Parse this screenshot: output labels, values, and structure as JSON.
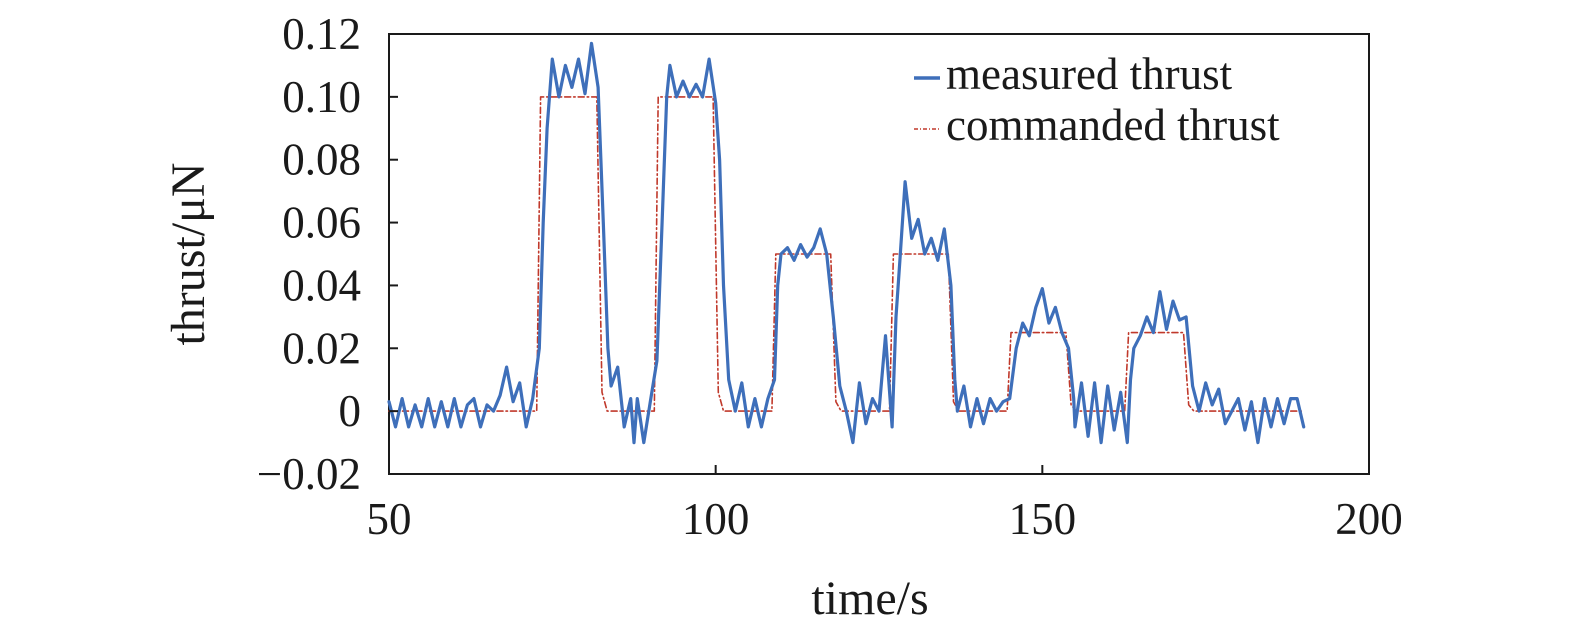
{
  "chart_data": {
    "type": "line",
    "title": "",
    "xlabel": "time/s",
    "ylabel": "thrust/μN",
    "xlim": [
      50,
      200
    ],
    "ylim": [
      -0.02,
      0.12
    ],
    "x_ticks": [
      50,
      100,
      150,
      200
    ],
    "x_tick_labels": [
      "50",
      "100",
      "150",
      "200"
    ],
    "y_ticks": [
      -0.02,
      0,
      0.02,
      0.04,
      0.06,
      0.08,
      0.1,
      0.12
    ],
    "y_tick_labels": [
      "−0.02",
      "0",
      "0.02",
      "0.04",
      "0.06",
      "0.08",
      "0.10",
      "0.12"
    ],
    "grid": false,
    "legend_position": "top-right",
    "series": [
      {
        "name": "measured thrust",
        "color": "#3e6fba",
        "style": "solid",
        "points": [
          [
            50,
            0.003
          ],
          [
            51,
            -0.005
          ],
          [
            52,
            0.004
          ],
          [
            53,
            -0.005
          ],
          [
            54,
            0.002
          ],
          [
            55,
            -0.005
          ],
          [
            56,
            0.004
          ],
          [
            57,
            -0.005
          ],
          [
            58,
            0.003
          ],
          [
            59,
            -0.005
          ],
          [
            60,
            0.004
          ],
          [
            61,
            -0.005
          ],
          [
            62,
            0.002
          ],
          [
            63,
            0.004
          ],
          [
            64,
            -0.005
          ],
          [
            65,
            0.002
          ],
          [
            66,
            0.0
          ],
          [
            67,
            0.005
          ],
          [
            68,
            0.014
          ],
          [
            69,
            0.003
          ],
          [
            70,
            0.009
          ],
          [
            71,
            -0.005
          ],
          [
            72,
            0.004
          ],
          [
            73,
            0.02
          ],
          [
            73.6,
            0.06
          ],
          [
            74.2,
            0.09
          ],
          [
            75,
            0.112
          ],
          [
            76,
            0.1
          ],
          [
            77,
            0.11
          ],
          [
            78,
            0.103
          ],
          [
            79,
            0.112
          ],
          [
            80,
            0.101
          ],
          [
            81,
            0.117
          ],
          [
            82,
            0.103
          ],
          [
            82.8,
            0.06
          ],
          [
            83.5,
            0.02
          ],
          [
            84,
            0.008
          ],
          [
            85,
            0.014
          ],
          [
            86,
            -0.005
          ],
          [
            87,
            0.004
          ],
          [
            87.5,
            -0.01
          ],
          [
            88,
            0.004
          ],
          [
            89,
            -0.01
          ],
          [
            90,
            0.003
          ],
          [
            91,
            0.016
          ],
          [
            91.8,
            0.06
          ],
          [
            92.5,
            0.1
          ],
          [
            93,
            0.11
          ],
          [
            94,
            0.1
          ],
          [
            95,
            0.105
          ],
          [
            96,
            0.1
          ],
          [
            97,
            0.104
          ],
          [
            98,
            0.1
          ],
          [
            99,
            0.112
          ],
          [
            100,
            0.098
          ],
          [
            100.6,
            0.08
          ],
          [
            101.2,
            0.04
          ],
          [
            102,
            0.01
          ],
          [
            103,
            0.0
          ],
          [
            104,
            0.009
          ],
          [
            105,
            -0.005
          ],
          [
            106,
            0.004
          ],
          [
            107,
            -0.005
          ],
          [
            108,
            0.004
          ],
          [
            109,
            0.01
          ],
          [
            109.5,
            0.04
          ],
          [
            110,
            0.05
          ],
          [
            111,
            0.052
          ],
          [
            112,
            0.048
          ],
          [
            113,
            0.053
          ],
          [
            114,
            0.049
          ],
          [
            115,
            0.052
          ],
          [
            116,
            0.058
          ],
          [
            117,
            0.05
          ],
          [
            118,
            0.03
          ],
          [
            119,
            0.008
          ],
          [
            120,
            0.0
          ],
          [
            121,
            -0.01
          ],
          [
            122,
            0.009
          ],
          [
            123,
            -0.004
          ],
          [
            124,
            0.004
          ],
          [
            125,
            0.0
          ],
          [
            126,
            0.024
          ],
          [
            127,
            -0.005
          ],
          [
            127.6,
            0.03
          ],
          [
            128.2,
            0.048
          ],
          [
            129,
            0.073
          ],
          [
            130,
            0.055
          ],
          [
            131,
            0.061
          ],
          [
            132,
            0.05
          ],
          [
            133,
            0.055
          ],
          [
            134,
            0.048
          ],
          [
            135,
            0.058
          ],
          [
            136,
            0.04
          ],
          [
            136.6,
            0.01
          ],
          [
            137,
            0.0
          ],
          [
            138,
            0.008
          ],
          [
            139,
            -0.005
          ],
          [
            140,
            0.004
          ],
          [
            141,
            -0.004
          ],
          [
            142,
            0.004
          ],
          [
            143,
            0.0
          ],
          [
            144,
            0.003
          ],
          [
            145,
            0.004
          ],
          [
            146,
            0.02
          ],
          [
            147,
            0.028
          ],
          [
            148,
            0.024
          ],
          [
            149,
            0.033
          ],
          [
            150,
            0.039
          ],
          [
            151,
            0.028
          ],
          [
            152,
            0.033
          ],
          [
            153,
            0.025
          ],
          [
            154,
            0.02
          ],
          [
            154.8,
            0.004
          ],
          [
            155,
            -0.005
          ],
          [
            156,
            0.009
          ],
          [
            157,
            -0.008
          ],
          [
            158,
            0.009
          ],
          [
            159,
            -0.01
          ],
          [
            160,
            0.008
          ],
          [
            161,
            -0.006
          ],
          [
            162,
            0.006
          ],
          [
            163,
            -0.01
          ],
          [
            163.5,
            0.01
          ],
          [
            164,
            0.02
          ],
          [
            165,
            0.024
          ],
          [
            166,
            0.03
          ],
          [
            167,
            0.025
          ],
          [
            168,
            0.038
          ],
          [
            169,
            0.026
          ],
          [
            170,
            0.035
          ],
          [
            171,
            0.029
          ],
          [
            172,
            0.03
          ],
          [
            173,
            0.008
          ],
          [
            174,
            0.0
          ],
          [
            175,
            0.009
          ],
          [
            176,
            0.002
          ],
          [
            177,
            0.007
          ],
          [
            178,
            -0.004
          ],
          [
            179,
            0.0
          ],
          [
            180,
            0.004
          ],
          [
            181,
            -0.006
          ],
          [
            182,
            0.003
          ],
          [
            183,
            -0.01
          ],
          [
            184,
            0.004
          ],
          [
            185,
            -0.005
          ],
          [
            186,
            0.004
          ],
          [
            187,
            -0.004
          ],
          [
            188,
            0.004
          ],
          [
            189,
            0.004
          ],
          [
            190,
            -0.005
          ]
        ]
      },
      {
        "name": "commanded thrust",
        "color": "#c0392b",
        "style": "dash-dot",
        "points": [
          [
            50,
            0
          ],
          [
            72.6,
            0
          ],
          [
            73.2,
            0.1
          ],
          [
            81.8,
            0.1
          ],
          [
            82.6,
            0.006
          ],
          [
            83.4,
            0
          ],
          [
            90.6,
            0
          ],
          [
            91.2,
            0.1
          ],
          [
            99.6,
            0.1
          ],
          [
            100.4,
            0.006
          ],
          [
            101.2,
            0
          ],
          [
            108.6,
            0
          ],
          [
            109.2,
            0.05
          ],
          [
            117.6,
            0.05
          ],
          [
            118.4,
            0.003
          ],
          [
            119.2,
            0
          ],
          [
            126.6,
            0
          ],
          [
            127.2,
            0.05
          ],
          [
            135.6,
            0.05
          ],
          [
            136.4,
            0.003
          ],
          [
            137.2,
            0
          ],
          [
            144.6,
            0
          ],
          [
            145.2,
            0.025
          ],
          [
            153.6,
            0.025
          ],
          [
            154.4,
            0.002
          ],
          [
            155.2,
            0
          ],
          [
            162.6,
            0
          ],
          [
            163.2,
            0.025
          ],
          [
            171.6,
            0.025
          ],
          [
            172.4,
            0.002
          ],
          [
            173.2,
            0
          ],
          [
            190,
            0
          ]
        ]
      }
    ]
  }
}
